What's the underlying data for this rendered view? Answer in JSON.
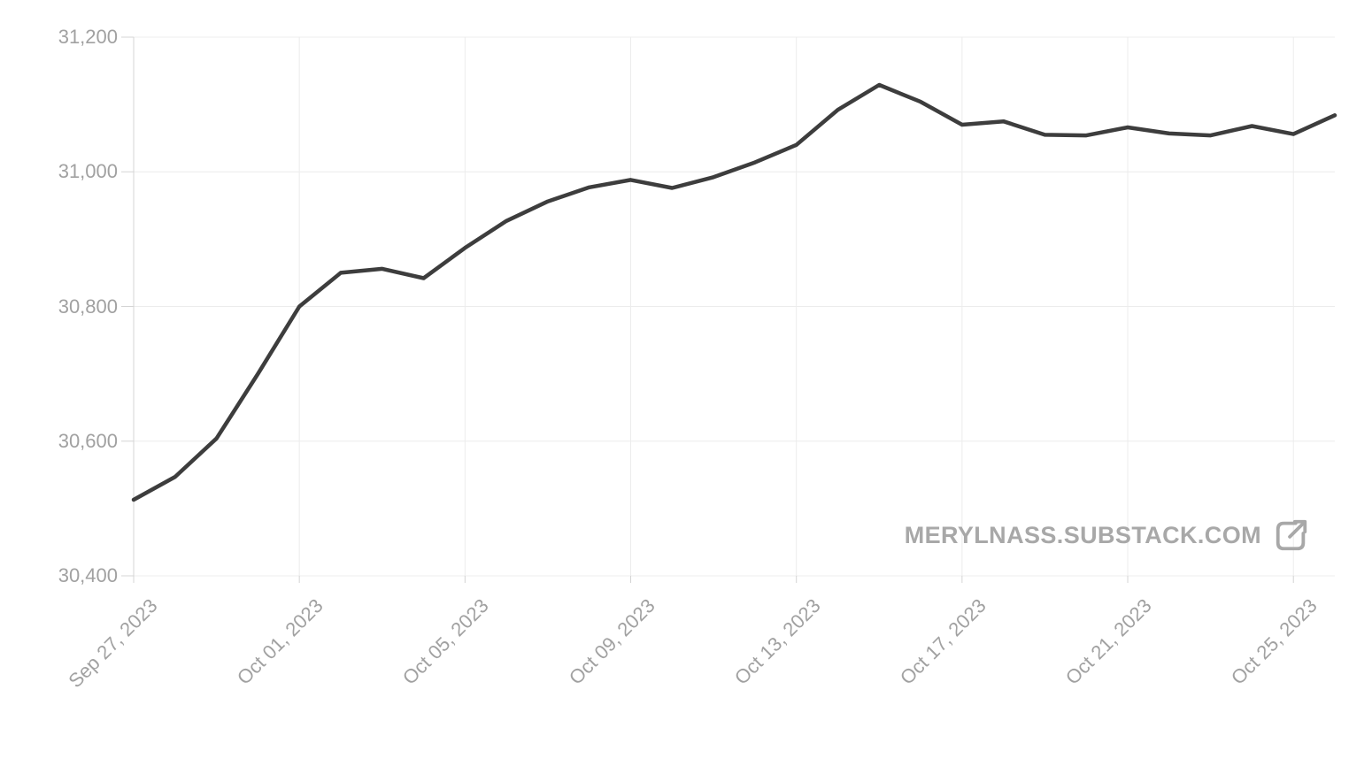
{
  "watermark": {
    "text": "MERYLNASS.SUBSTACK.COM",
    "color": "#a8a8a8",
    "icon": "external-link-icon"
  },
  "chart_data": {
    "type": "line",
    "title": "",
    "xlabel": "",
    "ylabel": "",
    "x": [
      "Sep 27, 2023",
      "Sep 28, 2023",
      "Sep 29, 2023",
      "Sep 30, 2023",
      "Oct 01, 2023",
      "Oct 02, 2023",
      "Oct 03, 2023",
      "Oct 04, 2023",
      "Oct 05, 2023",
      "Oct 06, 2023",
      "Oct 07, 2023",
      "Oct 08, 2023",
      "Oct 09, 2023",
      "Oct 10, 2023",
      "Oct 11, 2023",
      "Oct 12, 2023",
      "Oct 13, 2023",
      "Oct 14, 2023",
      "Oct 15, 2023",
      "Oct 16, 2023",
      "Oct 17, 2023",
      "Oct 18, 2023",
      "Oct 19, 2023",
      "Oct 20, 2023",
      "Oct 21, 2023",
      "Oct 22, 2023",
      "Oct 23, 2023",
      "Oct 24, 2023",
      "Oct 25, 2023",
      "Oct 26, 2023"
    ],
    "values": [
      30513,
      30547,
      30604,
      30700,
      30800,
      30850,
      30856,
      30842,
      30887,
      30927,
      30956,
      30977,
      30988,
      30976,
      30992,
      31014,
      31040,
      31092,
      31129,
      31104,
      31070,
      31075,
      31055,
      31054,
      31066,
      31057,
      31054,
      31068,
      31056,
      31084
    ],
    "ylim": [
      30400,
      31200
    ],
    "y_ticks": [
      30400,
      30600,
      30800,
      31000,
      31200
    ],
    "y_tick_labels": [
      "30,400",
      "30,600",
      "30,800",
      "31,000",
      "31,200"
    ],
    "x_tick_indices": [
      0,
      4,
      8,
      12,
      16,
      20,
      24,
      28
    ],
    "x_tick_labels": [
      "Sep 27, 2023",
      "Oct 01, 2023",
      "Oct 05, 2023",
      "Oct 09, 2023",
      "Oct 13, 2023",
      "Oct 17, 2023",
      "Oct 21, 2023",
      "Oct 25, 2023"
    ],
    "grid": true,
    "legend": "none",
    "line_color": "#3d3d3d",
    "grid_color": "#ececec",
    "axis_color": "#d4d4d4",
    "label_color": "#a1a1a1"
  }
}
